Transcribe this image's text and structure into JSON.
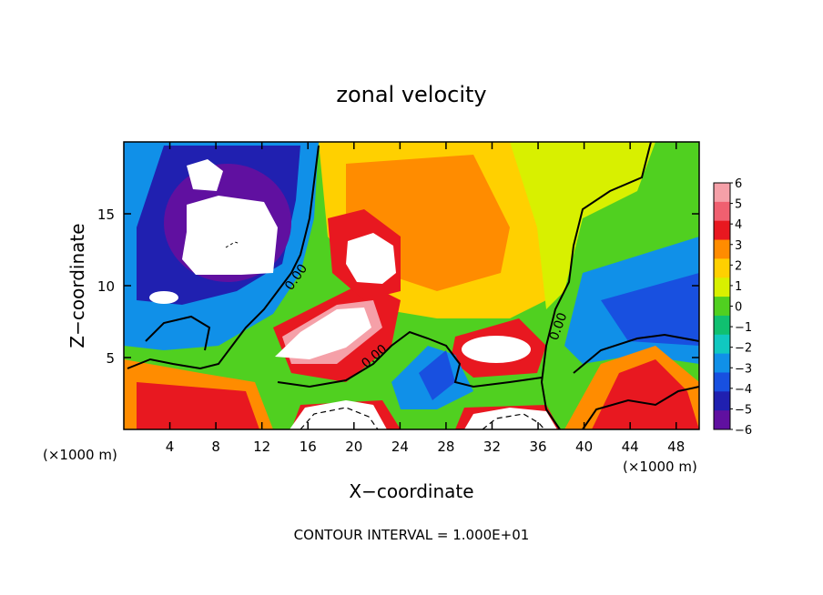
{
  "chart_data": {
    "type": "heatmap",
    "title": "zonal velocity",
    "xlabel": "X−coordinate",
    "ylabel": "Z−coordinate",
    "x_unit_left": "(×1000 m)",
    "x_unit_right": "(×1000 m)",
    "xlim": [
      0,
      50
    ],
    "ylim": [
      0,
      20
    ],
    "xticks": [
      "4",
      "8",
      "12",
      "16",
      "20",
      "24",
      "28",
      "32",
      "36",
      "40",
      "44",
      "48"
    ],
    "yticks": [
      "5",
      "10",
      "15"
    ],
    "colorbar": {
      "levels": [
        "6",
        "5",
        "4",
        "3",
        "2",
        "1",
        "0",
        "−1",
        "−2",
        "−3",
        "−4",
        "−5",
        "−6"
      ],
      "colors": [
        "#f5a0a8",
        "#f06070",
        "#e81820",
        "#ff8c00",
        "#ffd000",
        "#d8f000",
        "#50d020",
        "#10c070",
        "#10c8c0",
        "#1090e8",
        "#1850e0",
        "#2020b0",
        "#6010a0"
      ]
    },
    "contour_labels": [
      "0.00",
      "0.00",
      "0.00"
    ],
    "footer": "CONTOUR INTERVAL = 1.000E+01"
  }
}
